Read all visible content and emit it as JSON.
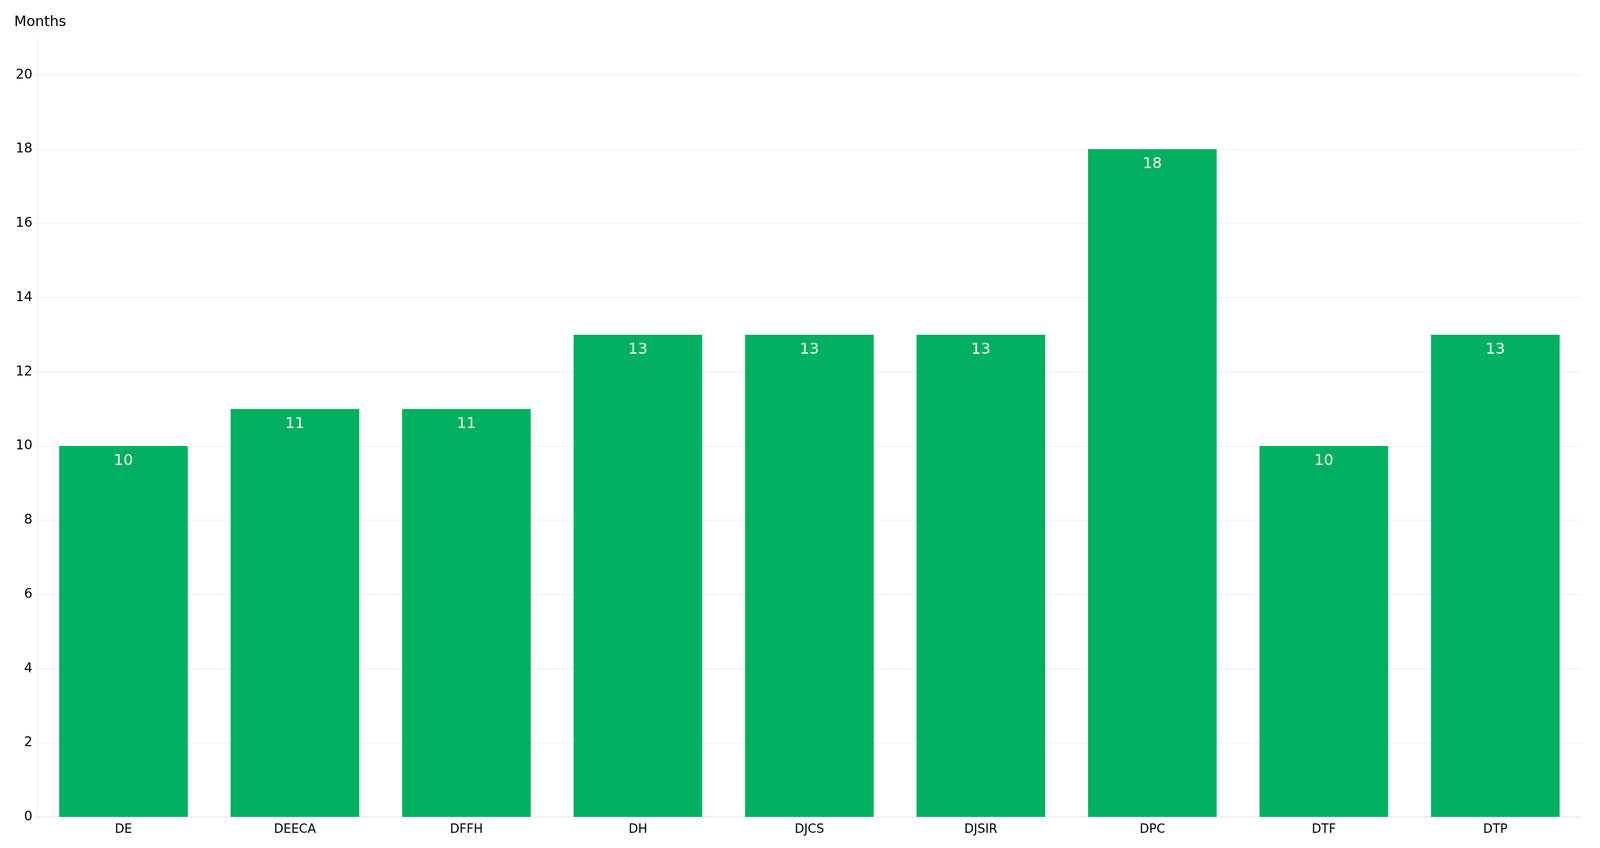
{
  "chart_data": {
    "type": "bar",
    "ylabel": "Months",
    "categories": [
      "DE",
      "DEECA",
      "DFFH",
      "DH",
      "DJCS",
      "DJSIR",
      "DPC",
      "DTF",
      "DTP"
    ],
    "values": [
      10,
      11,
      11,
      13,
      13,
      13,
      18,
      10,
      13
    ],
    "color": "#00b060",
    "ylim": [
      0,
      21
    ],
    "yticks": [
      0,
      2,
      4,
      6,
      8,
      10,
      12,
      14,
      16,
      18,
      20
    ],
    "grid": true,
    "data_labels": true
  }
}
